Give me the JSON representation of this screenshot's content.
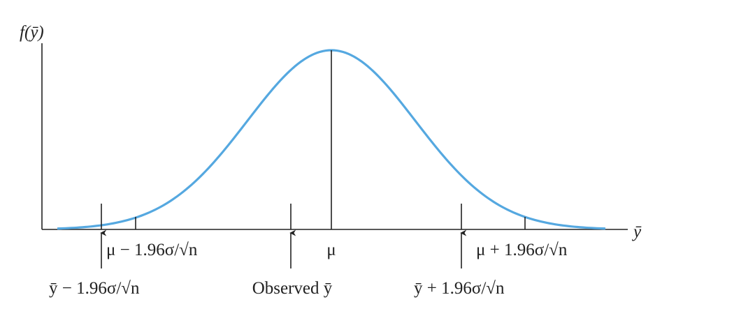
{
  "axes": {
    "y_label": "f(ȳ)",
    "x_label": "ȳ"
  },
  "markers": {
    "lower_mu": "μ − 1.96σ/√n",
    "mu": "μ",
    "upper_mu": "μ + 1.96σ/√n",
    "lower_ybar": "ȳ − 1.96σ/√n",
    "observed": "Observed ȳ",
    "upper_ybar": "ȳ + 1.96σ/√n"
  }
}
